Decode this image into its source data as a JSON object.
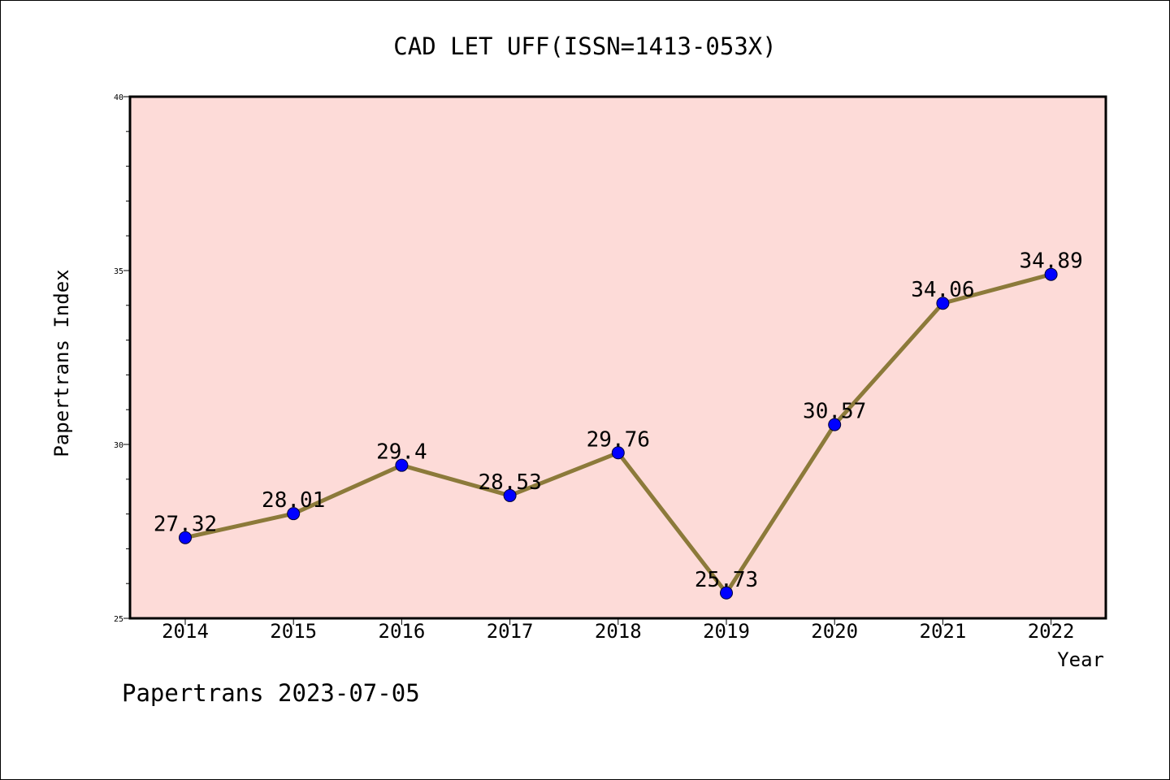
{
  "chart_data": {
    "type": "line",
    "title": "CAD LET UFF(ISSN=1413-053X)",
    "xlabel": "Year",
    "ylabel": "Papertrans Index",
    "categories": [
      "2014",
      "2015",
      "2016",
      "2017",
      "2018",
      "2019",
      "2020",
      "2021",
      "2022"
    ],
    "values": [
      27.32,
      28.01,
      29.4,
      28.53,
      29.76,
      25.73,
      30.57,
      34.06,
      34.89
    ],
    "data_labels": [
      "27.32",
      "28.01",
      "29.4",
      "28.53",
      "29.76",
      "25.73",
      "30.57",
      "34.06",
      "34.89"
    ],
    "ylim": [
      25,
      40
    ],
    "yticks": [
      25,
      30,
      35,
      40
    ],
    "ytick_labels": [
      "25",
      "30",
      "35",
      "40"
    ],
    "grid": false,
    "legend": "none",
    "colors": {
      "plot_background": "#fddbd8",
      "line": "#8c7a3a",
      "marker": "#0000ff"
    }
  },
  "footer": {
    "text": "Papertrans 2023-07-05"
  }
}
